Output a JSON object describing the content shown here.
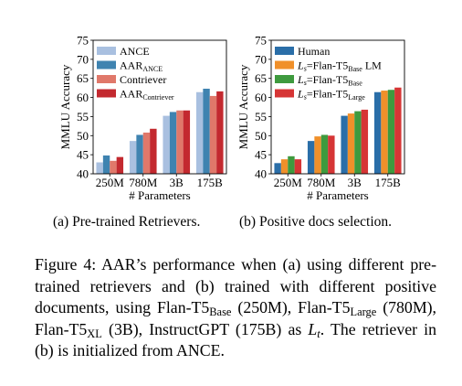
{
  "chart_data": [
    {
      "type": "bar",
      "ylabel": "MMLU Accuracy",
      "xlabel": "# Parameters",
      "categories": [
        "250M",
        "780M",
        "3B",
        "175B"
      ],
      "ylim": [
        40,
        75
      ],
      "yticks": [
        40,
        45,
        50,
        55,
        60,
        65,
        70,
        75
      ],
      "legend_position": "top-left",
      "series": [
        {
          "name": "ANCE",
          "legend_main": "ANCE",
          "legend_sub": "",
          "color": "#a9c0e0",
          "values": [
            43.0,
            48.6,
            55.2,
            61.4
          ]
        },
        {
          "name": "AAR_ANCE",
          "legend_main": "AAR",
          "legend_sub": "ANCE",
          "color": "#3f83b0",
          "values": [
            44.8,
            50.2,
            56.2,
            62.3
          ]
        },
        {
          "name": "Contriever",
          "legend_main": "Contriever",
          "legend_sub": "",
          "color": "#e0786a",
          "values": [
            43.4,
            50.8,
            56.6,
            60.4
          ]
        },
        {
          "name": "AAR_Contriever",
          "legend_main": "AAR",
          "legend_sub": "Contriever",
          "color": "#c3292f",
          "values": [
            44.4,
            51.8,
            56.6,
            61.6
          ]
        }
      ]
    },
    {
      "type": "bar",
      "ylabel": "MMLU Accuracy",
      "xlabel": "# Parameters",
      "categories": [
        "250M",
        "780M",
        "3B",
        "175B"
      ],
      "ylim": [
        40,
        75
      ],
      "yticks": [
        40,
        45,
        50,
        55,
        60,
        65,
        70,
        75
      ],
      "legend_position": "top-left",
      "series": [
        {
          "name": "Human",
          "legend_main": "Human",
          "legend_sub": "",
          "legend_tail": "",
          "color": "#2a6ea8",
          "values": [
            42.8,
            48.6,
            55.2,
            61.4
          ]
        },
        {
          "name": "Ls=Flan-T5Base LM",
          "legend_main": "=Flan-T5",
          "legend_sub": "Base",
          "legend_tail": " LM",
          "color": "#f0902a",
          "values": [
            43.8,
            49.8,
            55.8,
            61.8
          ]
        },
        {
          "name": "Ls=Flan-T5Base",
          "legend_main": "=Flan-T5",
          "legend_sub": "Base",
          "legend_tail": "",
          "color": "#3e9a3e",
          "values": [
            44.6,
            50.2,
            56.4,
            62.0
          ]
        },
        {
          "name": "Ls=Flan-T5Large",
          "legend_main": "=Flan-T5",
          "legend_sub": "Large",
          "legend_tail": "",
          "color": "#d63535",
          "values": [
            43.8,
            50.0,
            56.8,
            62.6
          ]
        }
      ]
    }
  ],
  "captions": {
    "a_prefix": "(a)",
    "a_text": "Pre-trained Retrievers.",
    "b_prefix": "(b)",
    "b_text": "Positive docs selection."
  },
  "figure_caption": {
    "t1": "Figure 4: AAR’s performance when (a) using different pre-trained retrievers and (b) trained with different positive documents, using Flan-T5",
    "s1": "Base",
    "t2": " (250M), Flan-T5",
    "s2": "Large",
    "t3": " (780M), Flan-T5",
    "s3": "XL",
    "t4": " (3B), InstructGPT (175B) as ",
    "m1": "L",
    "s4": "t",
    "t5": ". The retriever in (b) is initialized from ANCE."
  }
}
